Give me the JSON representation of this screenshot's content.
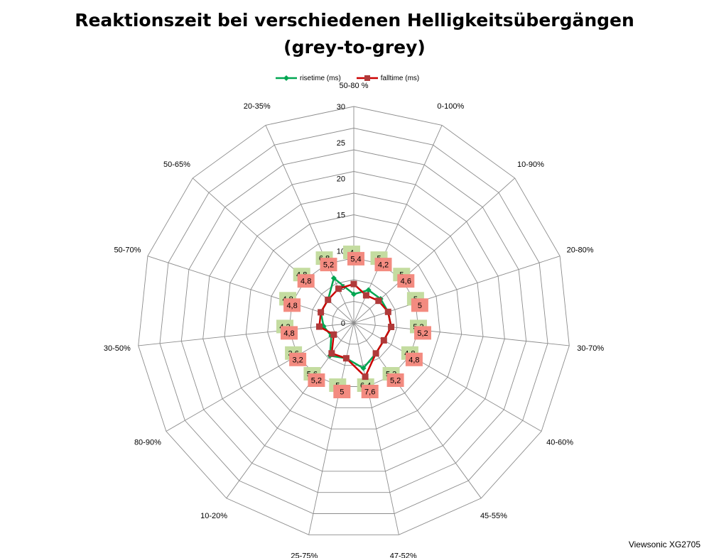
{
  "chart_data": {
    "type": "radar",
    "title": "Reaktionszeit bei verschiedenen Helligkeitsübergängen",
    "subtitle": "(grey-to-grey)",
    "categories": [
      "50-80 %",
      "0-100%",
      "10-90%",
      "20-80%",
      "30-70%",
      "40-60%",
      "45-55%",
      "47-52%",
      "25-75%",
      "10-20%",
      "80-90%",
      "30-50%",
      "50-70%",
      "50-65%",
      "20-35%"
    ],
    "rlim": [
      0,
      30
    ],
    "ticks": [
      "0",
      "5",
      "10",
      "15",
      "20",
      "25",
      "30"
    ],
    "grid": true,
    "legend_position": "top",
    "series": [
      {
        "name": "risetime (ms)",
        "color": "#00a651",
        "label_color": "#c4dca0",
        "values": [
          4,
          5,
          5,
          5,
          5.2,
          4.8,
          5.2,
          6.4,
          5,
          5.6,
          3.6,
          4.2,
          4.8,
          4.8,
          6.8
        ],
        "labels": [
          "4",
          "5",
          "5",
          "5",
          "5,2",
          "4,8",
          "5,2",
          "6,4",
          "5",
          "5,6",
          "3,6",
          "4,2",
          "4,8",
          "4,8",
          "6,8"
        ]
      },
      {
        "name": "falltime (ms)",
        "color": "#cc0000",
        "label_color": "#f38b80",
        "values": [
          5.4,
          4.2,
          4.6,
          5,
          5.2,
          4.8,
          5.2,
          7.6,
          5,
          5.2,
          3.2,
          4.8,
          4.8,
          4.8,
          5.2
        ],
        "labels": [
          "5,4",
          "4,2",
          "4,6",
          "5",
          "5,2",
          "4,8",
          "5,2",
          "7,6",
          "5",
          "5,2",
          "3,2",
          "4,8",
          "4,8",
          "4,8",
          "5,2"
        ]
      }
    ]
  },
  "credit": "Viewsonic XG2705"
}
